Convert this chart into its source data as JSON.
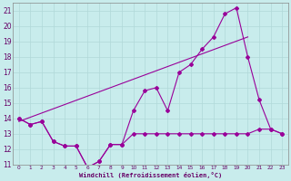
{
  "xlabel": "Windchill (Refroidissement éolien,°C)",
  "bg_color": "#c8ecec",
  "grid_color": "#b0d8d8",
  "line_color": "#990099",
  "xlim": [
    -0.5,
    23.5
  ],
  "ylim": [
    11,
    21.5
  ],
  "xticks": [
    0,
    1,
    2,
    3,
    4,
    5,
    6,
    7,
    8,
    9,
    10,
    11,
    12,
    13,
    14,
    15,
    16,
    17,
    18,
    19,
    20,
    21,
    22,
    23
  ],
  "yticks": [
    11,
    12,
    13,
    14,
    15,
    16,
    17,
    18,
    19,
    20,
    21
  ],
  "line1_x": [
    0,
    1,
    2,
    3,
    4,
    5,
    6,
    7,
    8,
    9,
    10,
    11,
    12,
    13,
    14,
    15,
    16,
    17,
    18,
    19,
    20,
    21,
    22,
    23
  ],
  "line1_y": [
    14.0,
    13.6,
    13.8,
    12.5,
    12.2,
    12.2,
    10.8,
    11.2,
    12.3,
    12.3,
    14.5,
    15.8,
    16.0,
    14.5,
    17.0,
    17.5,
    18.5,
    19.3,
    20.8,
    21.2,
    18.0,
    15.2,
    13.3,
    13.0
  ],
  "line2_x": [
    0,
    1,
    2,
    3,
    4,
    5,
    6,
    7,
    8,
    9,
    10,
    11,
    12,
    13,
    14,
    15,
    16,
    17,
    18,
    19,
    20,
    21,
    22,
    23
  ],
  "line2_y": [
    14.0,
    13.6,
    13.8,
    12.5,
    12.2,
    12.2,
    10.8,
    11.2,
    12.3,
    12.3,
    13.0,
    13.0,
    13.0,
    13.0,
    13.0,
    13.0,
    13.0,
    13.0,
    13.0,
    13.0,
    13.0,
    13.3,
    13.3,
    13.0
  ],
  "line3_x": [
    0,
    20
  ],
  "line3_y": [
    13.8,
    19.3
  ]
}
